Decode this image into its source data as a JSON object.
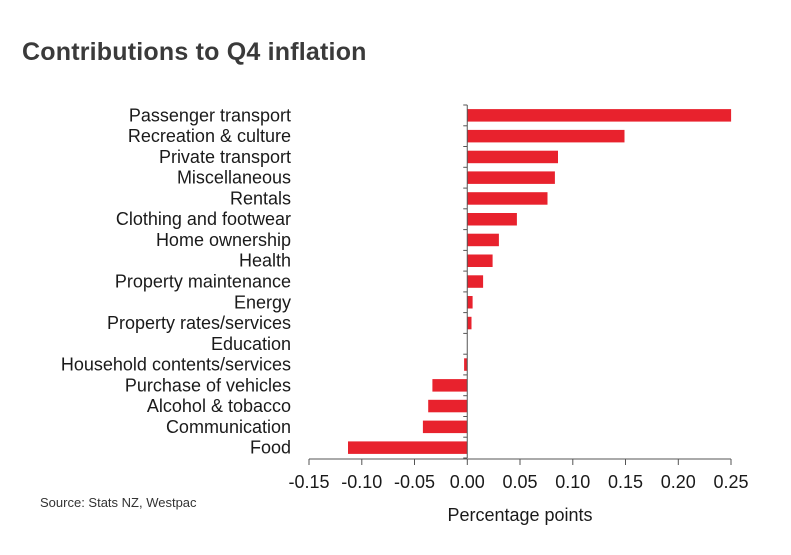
{
  "title": "Contributions to Q4 inflation",
  "source": "Source: Stats NZ, Westpac",
  "colors": {
    "bar": "#e8222d",
    "axis": "#555555"
  },
  "chart_data": {
    "type": "bar",
    "orientation": "horizontal",
    "title": "Contributions to Q4 inflation",
    "xlabel": "Percentage points",
    "ylabel": "",
    "xlim": [
      -0.15,
      0.25
    ],
    "xticks": [
      -0.15,
      -0.1,
      -0.05,
      0.0,
      0.05,
      0.1,
      0.15,
      0.2,
      0.25
    ],
    "xtick_labels": [
      "-0.15",
      "-0.10",
      "-0.05",
      "0.00",
      "0.05",
      "0.10",
      "0.15",
      "0.20",
      "0.25"
    ],
    "grid": false,
    "categories": [
      "Passenger transport",
      "Recreation & culture",
      "Private transport",
      "Miscellaneous",
      "Rentals",
      "Clothing and footwear",
      "Home ownership",
      "Health",
      "Property maintenance",
      "Energy",
      "Property rates/services",
      "Education",
      "Household contents/services",
      "Purchase of vehicles",
      "Alcohol & tobacco",
      "Communication",
      "Food"
    ],
    "values": [
      0.25,
      0.149,
      0.086,
      0.083,
      0.076,
      0.047,
      0.03,
      0.024,
      0.015,
      0.005,
      0.004,
      0.0,
      -0.003,
      -0.033,
      -0.037,
      -0.042,
      -0.113
    ]
  }
}
